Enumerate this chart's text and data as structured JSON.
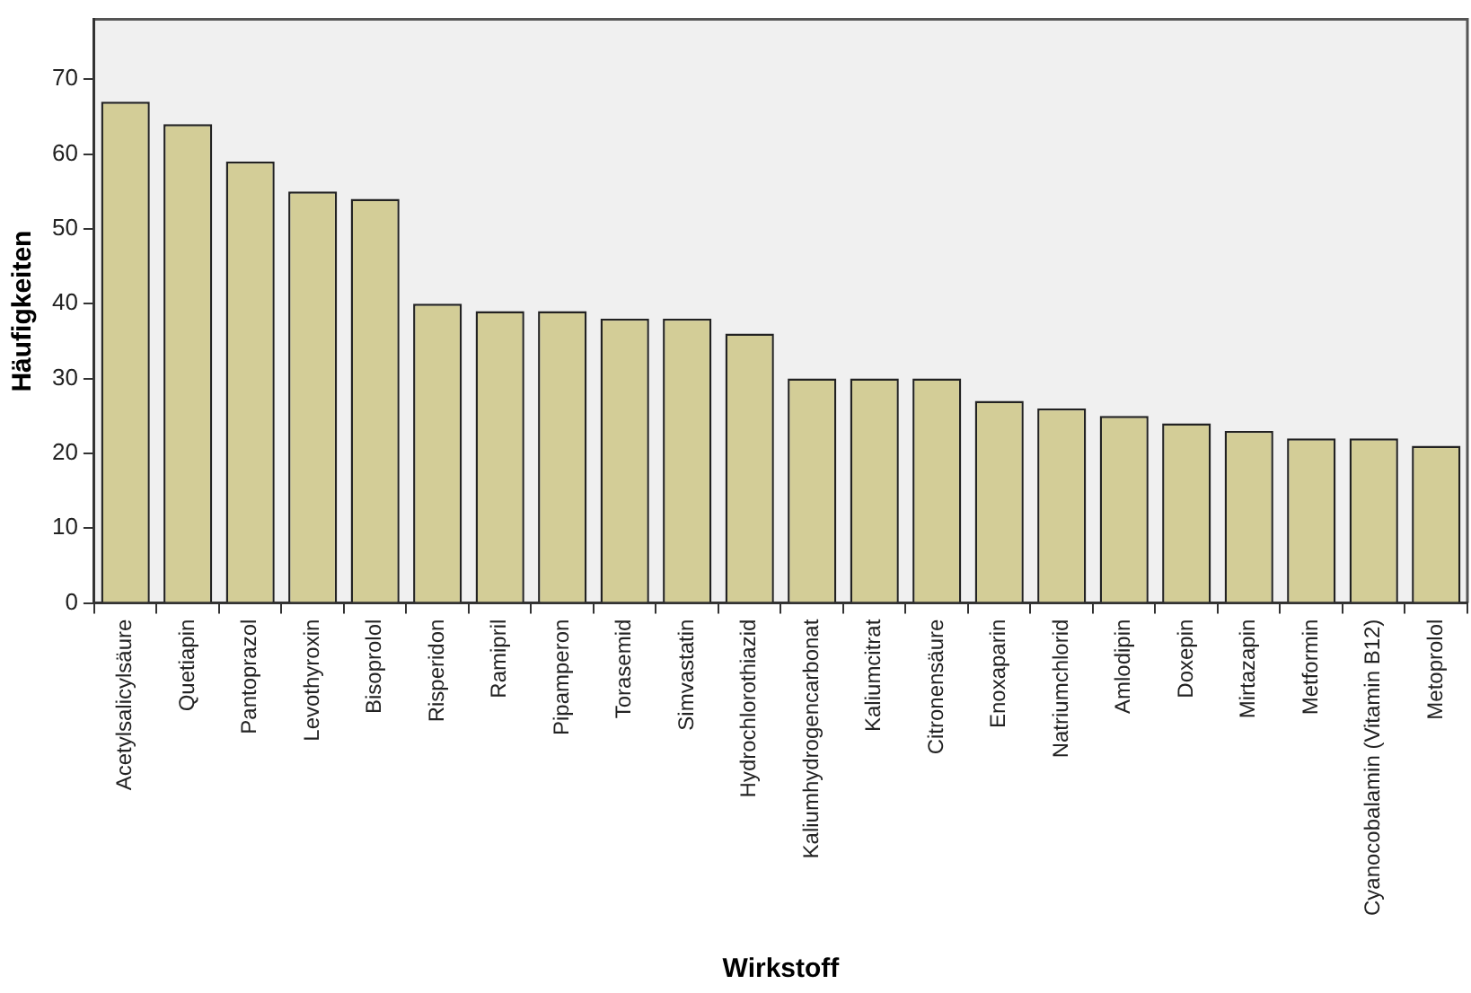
{
  "chart_data": {
    "type": "bar",
    "xlabel": "Wirkstoff",
    "ylabel": "Häufigkeiten",
    "categories": [
      "Acetylsalicylsäure",
      "Quetiapin",
      "Pantoprazol",
      "Levothyroxin",
      "Bisoprolol",
      "Risperidon",
      "Ramipril",
      "Pipamperon",
      "Torasemid",
      "Simvastatin",
      "Hydrochlorothiazid",
      "Kaliumhydrogencarbonat",
      "Kaliumcitrat",
      "Citronensäure",
      "Enoxaparin",
      "Natriumchlorid",
      "Amlodipin",
      "Doxepin",
      "Mirtazapin",
      "Metformin",
      "Cyanocobalamin (Vitamin B12)",
      "Metoprolol"
    ],
    "values": [
      67,
      64,
      59,
      55,
      54,
      40,
      39,
      39,
      38,
      38,
      36,
      30,
      30,
      30,
      27,
      26,
      25,
      24,
      23,
      22,
      22,
      21
    ],
    "color": "#d3cd97",
    "ylim": [
      0,
      78
    ],
    "yticks": [
      0,
      10,
      20,
      30,
      40,
      50,
      60,
      70
    ]
  }
}
